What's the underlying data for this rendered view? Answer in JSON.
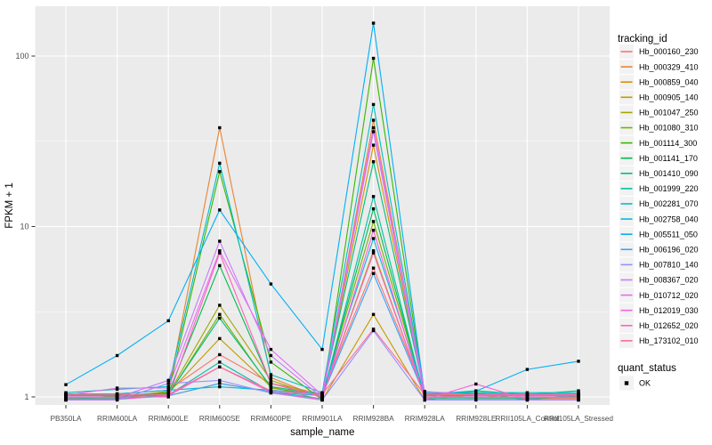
{
  "figure": {
    "background": "#FFFFFF",
    "panel_bg": "#EBEBEB",
    "grid_major_color": "#FFFFFF",
    "grid_minor_color": "#FFFFFF",
    "tick_color": "#333333",
    "tick_label_color": "#4D4D4D",
    "axis_title_color": "#000000",
    "point_color": "#000000",
    "legend_key_bg": "#F2F2F2"
  },
  "chart_data": {
    "type": "line",
    "title": "",
    "xlabel": "sample_name",
    "ylabel": "FPKM + 1",
    "y_scale": "log10",
    "y_ticks": [
      1,
      10,
      100
    ],
    "y_tick_labels": [
      "1",
      "10",
      "100"
    ],
    "y_minor_gridlines": [
      3.162,
      31.62
    ],
    "ylim": [
      0.95,
      190
    ],
    "grid": true,
    "legend_position": "right",
    "legend_title": "tracking_id",
    "legend2_title": "quant_status",
    "legend2_items": [
      {
        "label": "OK",
        "marker": "black-square"
      }
    ],
    "categories": [
      "PB350LA",
      "RRIM600LA",
      "RRIM600LE",
      "RRIM600SE",
      "RRIM600PE",
      "RRIM901LA",
      "RRIM928BA",
      "RRIM928LA",
      "RRIM928LE",
      "RRII105LA_Control",
      "RRII105LA_Stressed"
    ],
    "series": [
      {
        "name": "Hb_000160_230",
        "color": "#F8766D",
        "values": [
          1.0,
          1.0,
          1.05,
          1.77,
          1.2,
          1.0,
          5.7,
          1.0,
          1.0,
          1.0,
          1.0
        ]
      },
      {
        "name": "Hb_000329_410",
        "color": "#EA8331",
        "values": [
          1.0,
          1.0,
          1.1,
          38,
          1.3,
          1.0,
          42,
          1.05,
          1.0,
          1.0,
          1.0
        ]
      },
      {
        "name": "Hb_000859_040",
        "color": "#D89000",
        "values": [
          1.0,
          1.0,
          1.0,
          1.2,
          1.05,
          1.0,
          30,
          1.0,
          1.0,
          1.0,
          1.0
        ]
      },
      {
        "name": "Hb_000905_140",
        "color": "#C09B00",
        "values": [
          1.0,
          1.05,
          1.1,
          2.2,
          1.15,
          1.0,
          3.05,
          1.0,
          1.08,
          1.0,
          1.0
        ]
      },
      {
        "name": "Hb_001047_250",
        "color": "#A3A500",
        "values": [
          1.0,
          1.0,
          1.05,
          3.45,
          1.25,
          1.0,
          7.2,
          1.0,
          1.0,
          1.0,
          1.0
        ]
      },
      {
        "name": "Hb_001080_310",
        "color": "#7CAE00",
        "values": [
          1.0,
          1.0,
          1.0,
          3.05,
          1.1,
          1.0,
          10.7,
          1.0,
          1.0,
          1.0,
          1.0
        ]
      },
      {
        "name": "Hb_001114_300",
        "color": "#39B600",
        "values": [
          1.0,
          1.05,
          1.1,
          21,
          1.6,
          1.0,
          97,
          1.05,
          1.1,
          1.0,
          1.05
        ]
      },
      {
        "name": "Hb_001141_170",
        "color": "#00BB4E",
        "values": [
          1.0,
          1.0,
          1.05,
          5.9,
          1.2,
          1.0,
          12.7,
          1.0,
          1.0,
          1.0,
          1.0
        ]
      },
      {
        "name": "Hb_001410_090",
        "color": "#00BF7D",
        "values": [
          1.0,
          1.0,
          1.0,
          2.9,
          1.15,
          1.0,
          24,
          1.0,
          1.05,
          1.0,
          1.05
        ]
      },
      {
        "name": "Hb_001999_220",
        "color": "#00C1A3",
        "values": [
          1.0,
          1.0,
          1.05,
          1.6,
          1.1,
          1.0,
          15,
          1.0,
          1.0,
          1.0,
          1.05
        ]
      },
      {
        "name": "Hb_002281_070",
        "color": "#00BFC4",
        "values": [
          1.05,
          1.1,
          1.15,
          23.5,
          1.35,
          1.05,
          52,
          1.05,
          1.05,
          1.05,
          1.05
        ]
      },
      {
        "name": "Hb_002758_040",
        "color": "#00BAE0",
        "values": [
          1.0,
          1.0,
          1.05,
          1.1,
          1.05,
          1.0,
          8.5,
          1.0,
          1.0,
          1.0,
          1.0
        ]
      },
      {
        "name": "Hb_005511_050",
        "color": "#00B0F6",
        "values": [
          1.18,
          1.75,
          2.8,
          12.5,
          4.6,
          1.9,
          156,
          1.05,
          1.1,
          1.45,
          1.62
        ]
      },
      {
        "name": "Hb_006196_020",
        "color": "#35A2FF",
        "values": [
          1.0,
          1.0,
          1.0,
          1.2,
          1.05,
          1.0,
          5.3,
          1.0,
          1.0,
          1.0,
          1.0
        ]
      },
      {
        "name": "Hb_007810_140",
        "color": "#9590FF",
        "values": [
          1.0,
          1.0,
          1.2,
          1.25,
          1.1,
          1.0,
          2.45,
          1.0,
          1.0,
          1.0,
          1.0
        ]
      },
      {
        "name": "Hb_008367_020",
        "color": "#C77CFF",
        "values": [
          1.0,
          1.0,
          1.25,
          8.2,
          1.75,
          1.0,
          36,
          1.0,
          1.0,
          1.0,
          1.0
        ]
      },
      {
        "name": "Hb_010712_020",
        "color": "#E76BF3",
        "values": [
          1.0,
          1.1,
          1.1,
          7.2,
          1.9,
          1.0,
          38,
          1.05,
          1.0,
          1.0,
          1.0
        ]
      },
      {
        "name": "Hb_012019_030",
        "color": "#FA62DB",
        "values": [
          1.0,
          1.0,
          1.05,
          1.5,
          1.1,
          1.0,
          9.5,
          1.0,
          1.19,
          1.0,
          1.0
        ]
      },
      {
        "name": "Hb_012652_020",
        "color": "#FF62BC",
        "values": [
          1.0,
          1.0,
          1.0,
          7.0,
          1.2,
          1.0,
          7.0,
          1.0,
          1.0,
          1.0,
          1.0
        ]
      },
      {
        "name": "Hb_173102_010",
        "color": "#FF6A98",
        "values": [
          1.0,
          1.0,
          1.0,
          1.5,
          1.05,
          1.0,
          2.5,
          1.0,
          1.0,
          1.0,
          1.0
        ]
      }
    ]
  }
}
